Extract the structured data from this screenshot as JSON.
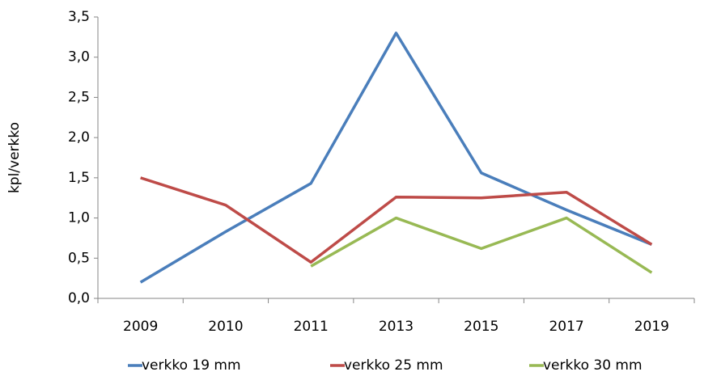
{
  "chart_data": {
    "type": "line",
    "y_label": "kpl/verkko",
    "categories": [
      "2009",
      "2010",
      "2011",
      "2013",
      "2015",
      "2017",
      "2019"
    ],
    "series": [
      {
        "name": "verkko 19 mm",
        "color": "#4a7ebb",
        "values": [
          0.2,
          0.83,
          1.43,
          3.3,
          1.56,
          1.1,
          0.67
        ]
      },
      {
        "name": "verkko 25 mm",
        "color": "#be4b48",
        "values": [
          1.5,
          1.16,
          0.45,
          1.26,
          1.25,
          1.32,
          0.67
        ]
      },
      {
        "name": "verkko 30 mm",
        "color": "#98b954",
        "values": [
          null,
          null,
          0.4,
          1.0,
          0.62,
          1.0,
          0.32
        ]
      }
    ],
    "ylim": [
      0,
      3.5
    ],
    "yticks": [
      {
        "value": 0,
        "label": "0,0"
      },
      {
        "value": 0.5,
        "label": "0,5"
      },
      {
        "value": 1,
        "label": "1,0"
      },
      {
        "value": 1.5,
        "label": "1,5"
      },
      {
        "value": 2,
        "label": "2,0"
      },
      {
        "value": 2.5,
        "label": "2,5"
      },
      {
        "value": 3,
        "label": "3,0"
      },
      {
        "value": 3.5,
        "label": "3,5"
      }
    ],
    "legend": "bottom",
    "grid": false
  }
}
